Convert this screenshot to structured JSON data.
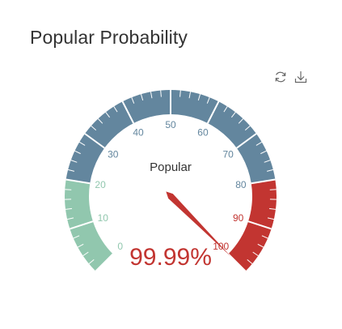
{
  "header": {
    "title": "Popular Probability"
  },
  "toolbox": {
    "icons": [
      "refresh-icon",
      "download-icon"
    ]
  },
  "chart_data": {
    "type": "gauge",
    "title": "",
    "series_name": "Popular",
    "value": 99.99,
    "value_label": "99.99%",
    "min": 0,
    "max": 100,
    "start_angle_deg": 225,
    "end_angle_deg": -45,
    "split_number": 10,
    "tick_labels": [
      "0",
      "10",
      "20",
      "30",
      "40",
      "50",
      "60",
      "70",
      "80",
      "90",
      "100"
    ],
    "bands": [
      {
        "to": 0.2,
        "color": "#91c7ae"
      },
      {
        "to": 0.8,
        "color": "#63869e"
      },
      {
        "to": 1.0,
        "color": "#c23531"
      }
    ],
    "pointer_color": "#c23531"
  }
}
